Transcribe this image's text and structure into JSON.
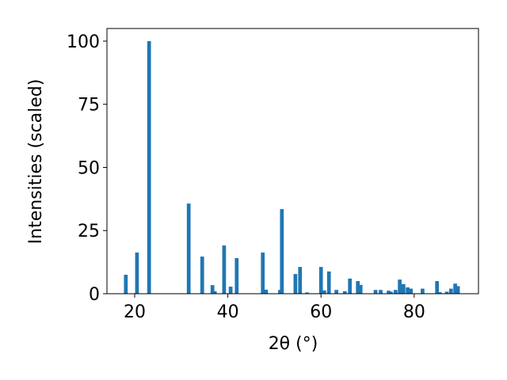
{
  "chart_data": {
    "type": "bar",
    "xlabel": "2θ (°)",
    "ylabel": "Intensities (scaled)",
    "x": [
      18.1,
      20.5,
      23.1,
      31.6,
      34.5,
      36.7,
      37.2,
      39.2,
      40.6,
      41.9,
      47.5,
      48.2,
      51.2,
      51.6,
      54.5,
      55.5,
      57.0,
      60.0,
      60.7,
      61.7,
      63.3,
      65.1,
      66.2,
      67.9,
      68.5,
      71.7,
      72.8,
      74.5,
      75.0,
      76.0,
      76.9,
      77.7,
      78.6,
      79.3,
      81.8,
      84.9,
      85.5,
      87.0,
      87.9,
      88.8,
      89.4
    ],
    "values": [
      7.5,
      16.3,
      100,
      35.7,
      14.7,
      3.4,
      1,
      19.1,
      2.8,
      14.1,
      16.3,
      1.6,
      1.5,
      33.5,
      7.8,
      10.6,
      0.5,
      10.6,
      1.3,
      8.8,
      1.5,
      1,
      6,
      5,
      3.5,
      1.5,
      1.5,
      1.2,
      0.8,
      1.5,
      5.6,
      3.8,
      2.5,
      2,
      2,
      5,
      0.6,
      0.8,
      2,
      4,
      3
    ],
    "color": "#1f77b4",
    "xlim": [
      14.05,
      93.8
    ],
    "xticks": [
      20,
      40,
      60,
      80
    ],
    "ylim": [
      0,
      105
    ],
    "yticks": [
      0,
      25,
      50,
      75,
      100
    ]
  }
}
